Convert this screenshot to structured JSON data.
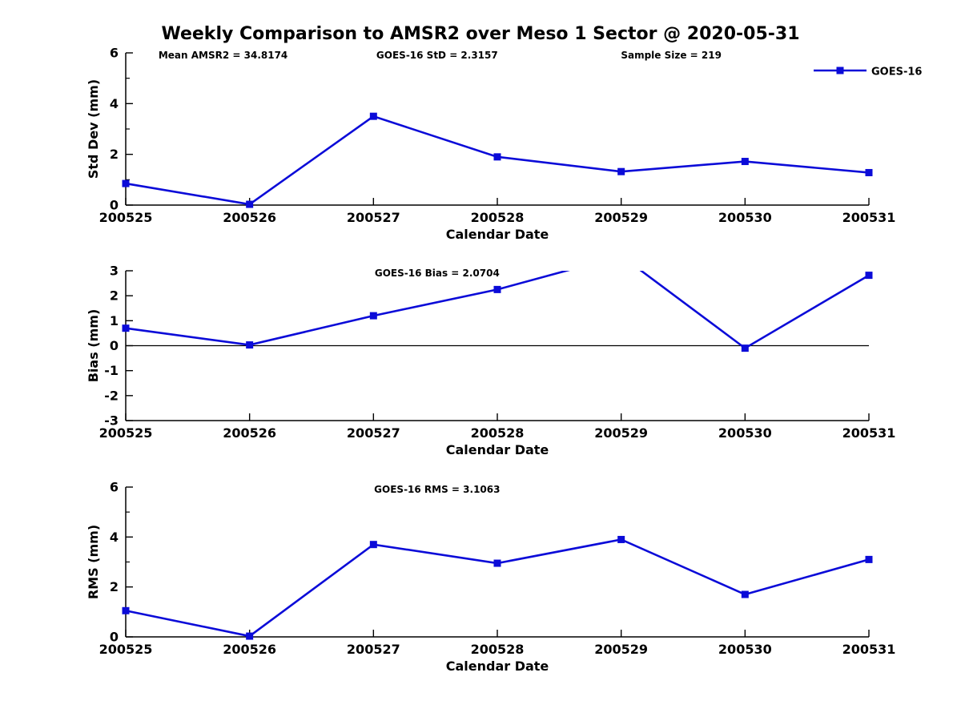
{
  "title": "Weekly Comparison to AMSR2 over Meso 1 Sector @ 2020-05-31",
  "colors": {
    "series_blue": "#0b0bd8",
    "axis_black": "#000000"
  },
  "legend": {
    "label": "GOES-16",
    "position": "top-right"
  },
  "x_axis": {
    "label": "Calendar Date",
    "ticks": [
      "200525",
      "200526",
      "200527",
      "200528",
      "200529",
      "200530",
      "200531"
    ]
  },
  "chart_data": [
    {
      "type": "line",
      "panel": "std-dev",
      "ylabel": "Std Dev (mm)",
      "xlabel": "Calendar Date",
      "categories": [
        "200525",
        "200526",
        "200527",
        "200528",
        "200529",
        "200530",
        "200531"
      ],
      "series": [
        {
          "name": "GOES-16",
          "values": [
            0.85,
            0.03,
            3.5,
            1.9,
            1.32,
            1.72,
            1.28
          ]
        }
      ],
      "ylim": [
        0,
        6
      ],
      "ytick_step": 2,
      "yminor_step": 1,
      "grid": false,
      "zero_line": false,
      "show_legend": true,
      "annotations": [
        {
          "text": "Mean AMSR2 = 34.8174",
          "xfrac": 0.131
        },
        {
          "text": "GOES-16 StD = 2.3157",
          "xfrac": 0.419
        },
        {
          "text": "Sample Size = 219",
          "xfrac": 0.734
        }
      ]
    },
    {
      "type": "line",
      "panel": "bias",
      "ylabel": "Bias (mm)",
      "xlabel": "Calendar Date",
      "categories": [
        "200525",
        "200526",
        "200527",
        "200528",
        "200529",
        "200530",
        "200531"
      ],
      "series": [
        {
          "name": "GOES-16",
          "values": [
            0.7,
            0.03,
            1.2,
            2.25,
            3.6,
            -0.1,
            2.82
          ]
        }
      ],
      "note": "200529 value (~3.6) exceeds y-axis max; line is clipped at +3 leaving a gap",
      "ylim": [
        -3,
        3
      ],
      "ytick_step": 1,
      "yminor_step": 0,
      "grid": false,
      "zero_line": true,
      "show_legend": false,
      "annotations": [
        {
          "text": "GOES-16 Bias  = 2.0704",
          "xfrac": 0.419
        }
      ]
    },
    {
      "type": "line",
      "panel": "rms",
      "ylabel": "RMS (mm)",
      "xlabel": "Calendar Date",
      "categories": [
        "200525",
        "200526",
        "200527",
        "200528",
        "200529",
        "200530",
        "200531"
      ],
      "series": [
        {
          "name": "GOES-16",
          "values": [
            1.05,
            0.03,
            3.7,
            2.95,
            3.9,
            1.7,
            3.1
          ]
        }
      ],
      "ylim": [
        0,
        6
      ],
      "ytick_step": 2,
      "yminor_step": 1,
      "grid": false,
      "zero_line": false,
      "show_legend": false,
      "annotations": [
        {
          "text": "GOES-16 RMS = 3.1063",
          "xfrac": 0.419
        }
      ]
    }
  ]
}
